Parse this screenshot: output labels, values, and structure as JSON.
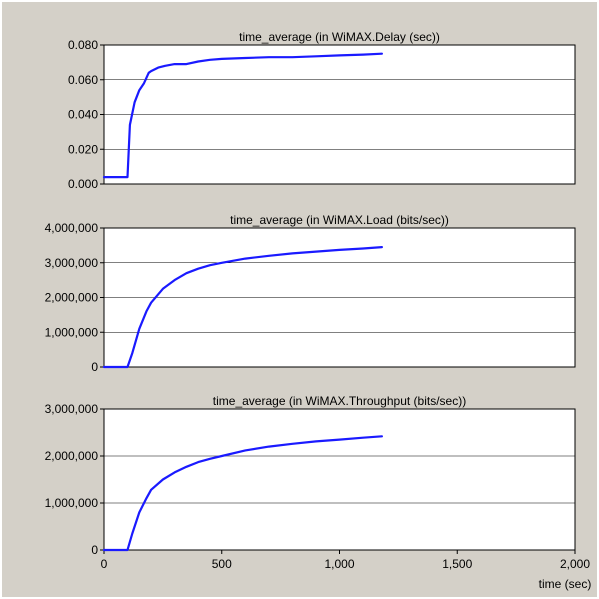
{
  "chart_data": [
    {
      "type": "line",
      "title": "time_average (in WiMAX.Delay (sec))",
      "xlabel": "",
      "ylabel": "",
      "xlim": [
        0,
        2000
      ],
      "ylim": [
        0,
        0.08
      ],
      "yticks": [
        0,
        0.02,
        0.04,
        0.06,
        0.08
      ],
      "ytick_labels": [
        "0.000",
        "0.020",
        "0.040",
        "0.060",
        "0.080"
      ],
      "grid": "horizontal",
      "series": [
        {
          "color": "#1a1aff",
          "x": [
            0,
            90,
            100,
            110,
            130,
            150,
            170,
            190,
            200,
            230,
            260,
            300,
            350,
            400,
            450,
            500,
            600,
            700,
            800,
            900,
            1000,
            1100,
            1180
          ],
          "y": [
            0.004,
            0.004,
            0.004,
            0.034,
            0.047,
            0.054,
            0.058,
            0.064,
            0.065,
            0.067,
            0.068,
            0.069,
            0.069,
            0.0705,
            0.0715,
            0.072,
            0.0725,
            0.073,
            0.073,
            0.0735,
            0.074,
            0.0745,
            0.075
          ]
        }
      ]
    },
    {
      "type": "line",
      "title": "time_average (in WiMAX.Load (bits/sec))",
      "xlabel": "",
      "ylabel": "",
      "xlim": [
        0,
        2000
      ],
      "ylim": [
        0,
        4000000
      ],
      "yticks": [
        0,
        1000000,
        2000000,
        3000000,
        4000000
      ],
      "ytick_labels": [
        "0",
        "1,000,000",
        "2,000,000",
        "3,000,000",
        "4,000,000"
      ],
      "grid": "horizontal",
      "series": [
        {
          "color": "#1a1aff",
          "x": [
            0,
            90,
            100,
            120,
            150,
            180,
            200,
            250,
            300,
            350,
            400,
            450,
            500,
            600,
            700,
            800,
            900,
            1000,
            1100,
            1180
          ],
          "y": [
            0,
            0,
            0,
            400000,
            1100000,
            1600000,
            1850000,
            2250000,
            2500000,
            2700000,
            2830000,
            2930000,
            3000000,
            3120000,
            3200000,
            3270000,
            3320000,
            3370000,
            3410000,
            3450000
          ]
        }
      ]
    },
    {
      "type": "line",
      "title": "time_average (in WiMAX.Throughput (bits/sec))",
      "xlabel": "time (sec)",
      "ylabel": "",
      "xlim": [
        0,
        2000
      ],
      "ylim": [
        0,
        3000000
      ],
      "xticks": [
        0,
        500,
        1000,
        1500,
        2000
      ],
      "xtick_labels": [
        "0",
        "500",
        "1,000",
        "1,500",
        "2,000"
      ],
      "yticks": [
        0,
        1000000,
        2000000,
        3000000
      ],
      "ytick_labels": [
        "0",
        "1,000,000",
        "2,000,000",
        "3,000,000"
      ],
      "grid": "horizontal",
      "series": [
        {
          "color": "#1a1aff",
          "x": [
            0,
            90,
            100,
            120,
            150,
            180,
            200,
            250,
            300,
            350,
            400,
            450,
            500,
            600,
            700,
            800,
            900,
            1000,
            1100,
            1180
          ],
          "y": [
            0,
            0,
            0,
            350000,
            800000,
            1100000,
            1280000,
            1500000,
            1650000,
            1770000,
            1870000,
            1940000,
            2000000,
            2120000,
            2200000,
            2260000,
            2310000,
            2350000,
            2390000,
            2420000
          ]
        }
      ]
    }
  ]
}
